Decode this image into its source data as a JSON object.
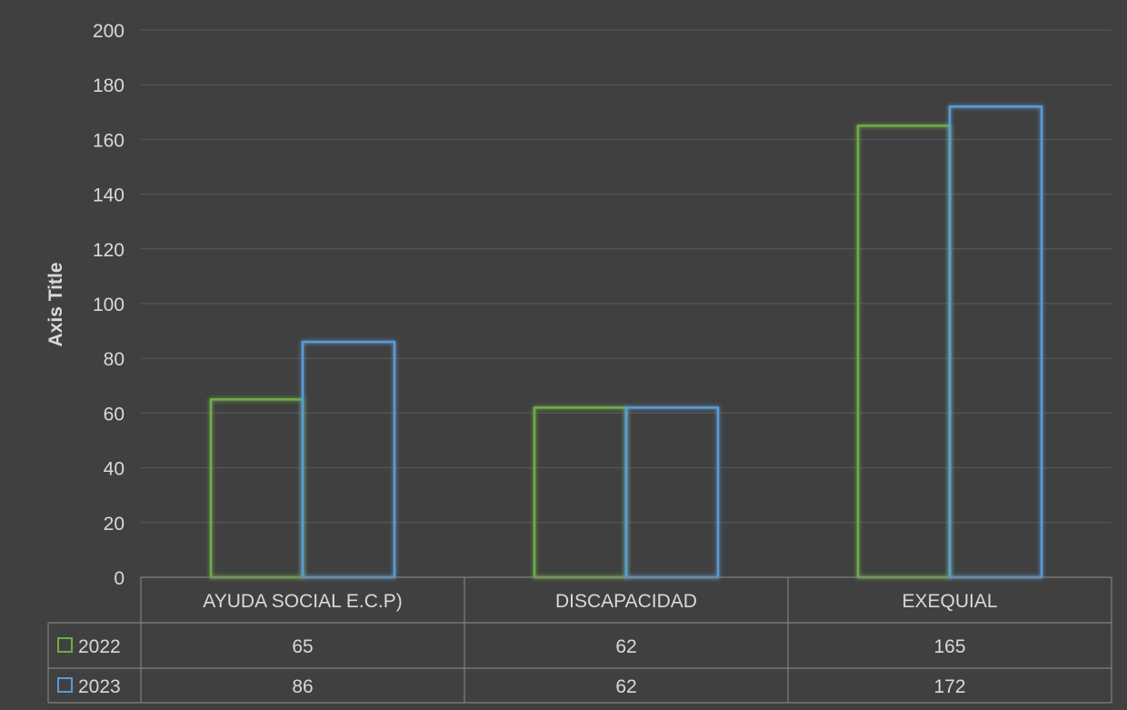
{
  "chart_data": {
    "type": "bar",
    "title": "",
    "xlabel": "",
    "ylabel": "Axis Title",
    "ylim": [
      0,
      200
    ],
    "yticks": [
      0,
      20,
      40,
      60,
      80,
      100,
      120,
      140,
      160,
      180,
      200
    ],
    "grid": true,
    "legend": "data-table",
    "categories": [
      "AYUDA SOCIAL E.C.P)",
      "DISCAPACIDAD",
      "EXEQUIAL"
    ],
    "series": [
      {
        "name": "2022",
        "values": [
          65,
          62,
          165
        ],
        "color": "#70ad47"
      },
      {
        "name": "2023",
        "values": [
          86,
          62,
          172
        ],
        "color": "#5b9bd5"
      }
    ]
  }
}
